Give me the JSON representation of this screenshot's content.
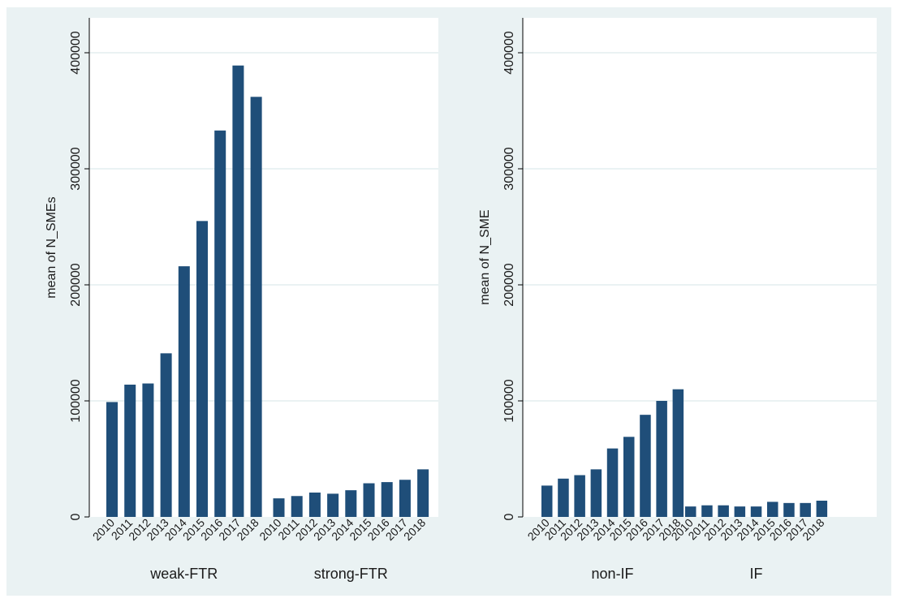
{
  "colors": {
    "outer_background": "#eaf2f3",
    "plot_background": "#ffffff",
    "bar": "#1f4e79",
    "grid": "#eaf2f3",
    "axis": "#000000"
  },
  "chart_data": [
    {
      "type": "bar",
      "ylabel": "mean of N_SMEs",
      "ylim": [
        0,
        400000
      ],
      "yticks": [
        "0",
        "100000",
        "200000",
        "300000",
        "400000"
      ],
      "grid": true,
      "groups": [
        {
          "label": "weak-FTR",
          "categories": [
            "2010",
            "2011",
            "2012",
            "2013",
            "2014",
            "2015",
            "2016",
            "2017",
            "2018"
          ],
          "values": [
            99000,
            114000,
            115000,
            141000,
            216000,
            255000,
            333000,
            389000,
            362000
          ]
        },
        {
          "label": "strong-FTR",
          "categories": [
            "2010",
            "2011",
            "2012",
            "2013",
            "2014",
            "2015",
            "2016",
            "2017",
            "2018"
          ],
          "values": [
            16000,
            18000,
            21000,
            20000,
            23000,
            29000,
            30000,
            32000,
            41000
          ]
        }
      ]
    },
    {
      "type": "bar",
      "ylabel": "mean of N_SME",
      "ylim": [
        0,
        400000
      ],
      "yticks": [
        "0",
        "100000",
        "200000",
        "300000",
        "400000"
      ],
      "grid": true,
      "groups": [
        {
          "label": "non-IF",
          "categories": [
            "2010",
            "2011",
            "2012",
            "2013",
            "2014",
            "2015",
            "2016",
            "2017",
            "2018"
          ],
          "values": [
            27000,
            33000,
            36000,
            41000,
            59000,
            69000,
            88000,
            100000,
            110000
          ]
        },
        {
          "label": "IF",
          "categories": [
            "2010",
            "2011",
            "2012",
            "2013",
            "2014",
            "2015",
            "2016",
            "2017",
            "2018"
          ],
          "values": [
            9000,
            10000,
            10000,
            9000,
            9000,
            13000,
            12000,
            12000,
            14000
          ]
        }
      ]
    }
  ]
}
